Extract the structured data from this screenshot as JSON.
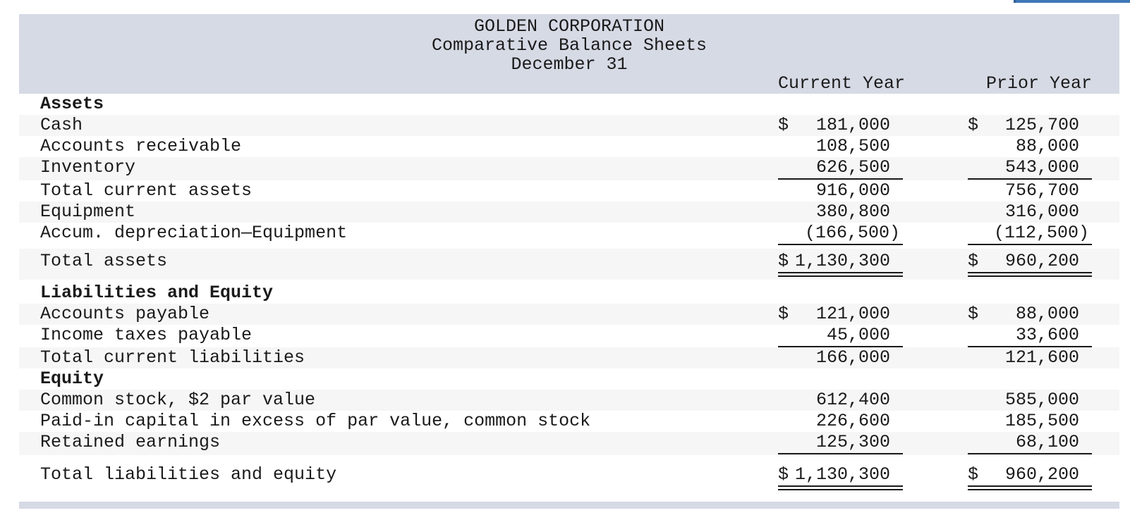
{
  "partial_button": {
    "color": "#3d77b6"
  },
  "sheet": {
    "header": {
      "title": "GOLDEN CORPORATION",
      "subtitle": "Comparative Balance Sheets",
      "date_line": "December 31",
      "col_current": "Current Year",
      "col_prior": "Prior Year"
    },
    "colors": {
      "band": "#d6dae5",
      "stripe": "#f6f6f6",
      "text": "#1a1a1a",
      "rule": "#1a1a1a",
      "accent_blue": "#3d77b6"
    },
    "rows": [
      {
        "label": "Assets",
        "cy_d": "",
        "cy_v": "",
        "py_d": "",
        "py_v": ""
      },
      {
        "label": "Cash",
        "cy_d": "$",
        "cy_v": "181,000",
        "py_d": "$",
        "py_v": "125,700"
      },
      {
        "label": "Accounts receivable",
        "cy_d": "",
        "cy_v": "108,500",
        "py_d": "",
        "py_v": "88,000"
      },
      {
        "label": "Inventory",
        "cy_d": "",
        "cy_v": "626,500",
        "py_d": "",
        "py_v": "543,000"
      },
      {
        "label": "Total current assets",
        "cy_d": "",
        "cy_v": "916,000",
        "py_d": "",
        "py_v": "756,700"
      },
      {
        "label": "Equipment",
        "cy_d": "",
        "cy_v": "380,800",
        "py_d": "",
        "py_v": "316,000"
      },
      {
        "label": "Accum. depreciation—Equipment",
        "cy_d": "",
        "cy_v": "(166,500)",
        "py_d": "",
        "py_v": "(112,500)"
      },
      {
        "label": "Total assets",
        "cy_d": "$",
        "cy_v": "1,130,300",
        "py_d": "$",
        "py_v": "960,200"
      },
      {
        "label": "Liabilities and Equity",
        "cy_d": "",
        "cy_v": "",
        "py_d": "",
        "py_v": ""
      },
      {
        "label": "Accounts payable",
        "cy_d": "$",
        "cy_v": "121,000",
        "py_d": "$",
        "py_v": "88,000"
      },
      {
        "label": "Income taxes payable",
        "cy_d": "",
        "cy_v": "45,000",
        "py_d": "",
        "py_v": "33,600"
      },
      {
        "label": "Total current liabilities",
        "cy_d": "",
        "cy_v": "166,000",
        "py_d": "",
        "py_v": "121,600"
      },
      {
        "label": "Equity",
        "cy_d": "",
        "cy_v": "",
        "py_d": "",
        "py_v": ""
      },
      {
        "label": "Common stock, $2 par value",
        "cy_d": "",
        "cy_v": "612,400",
        "py_d": "",
        "py_v": "585,000"
      },
      {
        "label": "Paid-in capital in excess of par value, common stock",
        "cy_d": "",
        "cy_v": "226,600",
        "py_d": "",
        "py_v": "185,500"
      },
      {
        "label": "Retained earnings",
        "cy_d": "",
        "cy_v": "125,300",
        "py_d": "",
        "py_v": "68,100"
      },
      {
        "label": "Total liabilities and equity",
        "cy_d": "$",
        "cy_v": "1,130,300",
        "py_d": "$",
        "py_v": "960,200"
      }
    ]
  }
}
